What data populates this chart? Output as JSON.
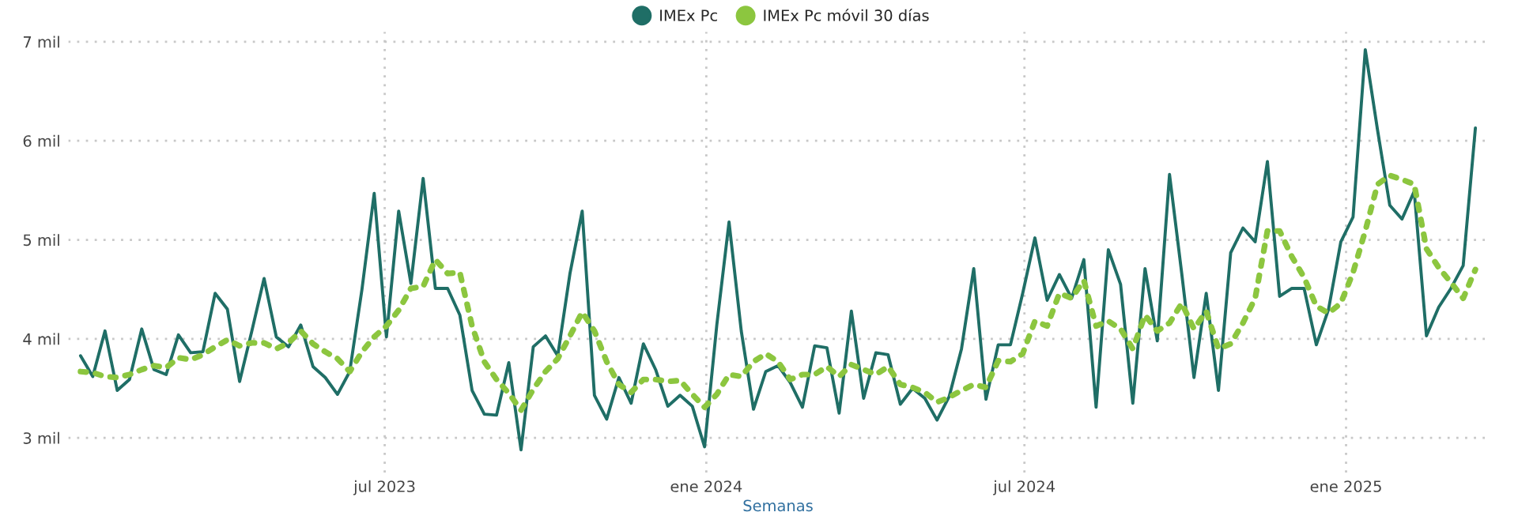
{
  "chart_data": {
    "type": "line",
    "xlabel": "Semanas",
    "x": [
      "2023-01-08",
      "2023-01-15",
      "2023-01-22",
      "2023-01-29",
      "2023-02-05",
      "2023-02-12",
      "2023-02-19",
      "2023-02-26",
      "2023-03-05",
      "2023-03-12",
      "2023-03-19",
      "2023-03-26",
      "2023-04-02",
      "2023-04-09",
      "2023-04-16",
      "2023-04-23",
      "2023-04-30",
      "2023-05-07",
      "2023-05-14",
      "2023-05-21",
      "2023-05-28",
      "2023-06-04",
      "2023-06-11",
      "2023-06-18",
      "2023-06-25",
      "2023-07-02",
      "2023-07-09",
      "2023-07-16",
      "2023-07-23",
      "2023-07-30",
      "2023-08-06",
      "2023-08-13",
      "2023-08-20",
      "2023-08-27",
      "2023-09-03",
      "2023-09-10",
      "2023-09-17",
      "2023-09-24",
      "2023-10-01",
      "2023-10-08",
      "2023-10-15",
      "2023-10-22",
      "2023-10-29",
      "2023-11-05",
      "2023-11-12",
      "2023-11-19",
      "2023-11-26",
      "2023-12-03",
      "2023-12-10",
      "2023-12-17",
      "2023-12-24",
      "2023-12-31",
      "2024-01-07",
      "2024-01-14",
      "2024-01-21",
      "2024-01-28",
      "2024-02-04",
      "2024-02-11",
      "2024-02-18",
      "2024-02-25",
      "2024-03-03",
      "2024-03-10",
      "2024-03-17",
      "2024-03-24",
      "2024-03-31",
      "2024-04-07",
      "2024-04-14",
      "2024-04-21",
      "2024-04-28",
      "2024-05-05",
      "2024-05-12",
      "2024-05-19",
      "2024-05-26",
      "2024-06-02",
      "2024-06-09",
      "2024-06-16",
      "2024-06-23",
      "2024-06-30",
      "2024-07-07",
      "2024-07-14",
      "2024-07-21",
      "2024-07-28",
      "2024-08-04",
      "2024-08-11",
      "2024-08-18",
      "2024-08-25",
      "2024-09-01",
      "2024-09-08",
      "2024-09-15",
      "2024-09-22",
      "2024-09-29",
      "2024-10-06",
      "2024-10-13",
      "2024-10-20",
      "2024-10-27",
      "2024-11-03",
      "2024-11-10",
      "2024-11-17",
      "2024-11-24",
      "2024-12-01",
      "2024-12-08",
      "2024-12-15",
      "2024-12-22",
      "2024-12-29",
      "2025-01-05",
      "2025-01-12",
      "2025-01-19",
      "2025-01-26",
      "2025-02-02",
      "2025-02-09",
      "2025-02-16",
      "2025-02-23",
      "2025-03-02",
      "2025-03-09",
      "2025-03-16"
    ],
    "series": [
      {
        "name": "IMEx Pc",
        "color": "#1f6e66",
        "line_style": "solid",
        "values": [
          3.83,
          3.62,
          4.08,
          3.48,
          3.59,
          4.1,
          3.69,
          3.64,
          4.04,
          3.86,
          3.87,
          4.46,
          4.3,
          3.57,
          4.08,
          4.61,
          4.02,
          3.92,
          4.14,
          3.72,
          3.61,
          3.44,
          3.67,
          4.5,
          5.47,
          4.02,
          5.29,
          4.56,
          5.62,
          4.51,
          4.51,
          4.24,
          3.48,
          3.24,
          3.23,
          3.76,
          2.88,
          3.92,
          4.03,
          3.83,
          4.66,
          5.29,
          3.43,
          3.19,
          3.61,
          3.35,
          3.95,
          3.69,
          3.32,
          3.43,
          3.32,
          2.91,
          4.14,
          5.18,
          4.08,
          3.29,
          3.67,
          3.73,
          3.56,
          3.31,
          3.93,
          3.91,
          3.25,
          4.28,
          3.4,
          3.86,
          3.84,
          3.34,
          3.5,
          3.4,
          3.18,
          3.42,
          3.9,
          4.71,
          3.39,
          3.94,
          3.94,
          4.46,
          5.02,
          4.39,
          4.65,
          4.41,
          4.8,
          3.31,
          4.9,
          4.55,
          3.35,
          4.71,
          3.98,
          5.66,
          4.66,
          3.61,
          4.46,
          3.48,
          4.87,
          5.12,
          4.98,
          5.79,
          4.43,
          4.51,
          4.51,
          3.94,
          4.3,
          4.98,
          5.23,
          6.92,
          6.11,
          5.35,
          5.21,
          5.49,
          4.03,
          4.32,
          4.51,
          4.74,
          6.13
        ]
      },
      {
        "name": "IMEx Pc móvil 30 días",
        "color": "#8cc63f",
        "line_style": "dotted",
        "values": [
          3.67,
          3.66,
          3.62,
          3.61,
          3.64,
          3.69,
          3.73,
          3.71,
          3.81,
          3.79,
          3.84,
          3.92,
          3.99,
          3.93,
          3.96,
          3.96,
          3.9,
          3.96,
          4.08,
          3.95,
          3.87,
          3.8,
          3.67,
          3.87,
          4.02,
          4.13,
          4.29,
          4.51,
          4.53,
          4.8,
          4.66,
          4.67,
          4.13,
          3.77,
          3.59,
          3.45,
          3.28,
          3.49,
          3.67,
          3.8,
          4.03,
          4.27,
          4.08,
          3.77,
          3.54,
          3.46,
          3.59,
          3.59,
          3.57,
          3.58,
          3.44,
          3.31,
          3.44,
          3.64,
          3.62,
          3.77,
          3.85,
          3.77,
          3.59,
          3.64,
          3.64,
          3.72,
          3.62,
          3.74,
          3.69,
          3.64,
          3.72,
          3.54,
          3.51,
          3.46,
          3.36,
          3.41,
          3.48,
          3.54,
          3.51,
          3.78,
          3.77,
          3.85,
          4.18,
          4.13,
          4.46,
          4.41,
          4.59,
          4.13,
          4.18,
          4.1,
          3.9,
          4.24,
          4.08,
          4.16,
          4.36,
          4.1,
          4.28,
          3.9,
          3.95,
          4.16,
          4.41,
          5.09,
          5.09,
          4.83,
          4.62,
          4.33,
          4.26,
          4.36,
          4.67,
          5.09,
          5.56,
          5.65,
          5.61,
          5.56,
          4.91,
          4.72,
          4.57,
          4.41,
          4.7
        ]
      }
    ],
    "xlim": [
      "2023-01-01",
      "2025-03-23"
    ],
    "xticks": [
      {
        "value": "2023-07-01",
        "label": "jul 2023"
      },
      {
        "value": "2024-01-01",
        "label": "ene 2024"
      },
      {
        "value": "2024-07-01",
        "label": "jul 2024"
      },
      {
        "value": "2025-01-01",
        "label": "ene 2025"
      }
    ],
    "ylim": [
      2.65,
      7.1
    ],
    "yticks": [
      {
        "value": 3,
        "label": "3 mil"
      },
      {
        "value": 4,
        "label": "4 mil"
      },
      {
        "value": 5,
        "label": "5 mil"
      },
      {
        "value": 6,
        "label": "6 mil"
      },
      {
        "value": 7,
        "label": "7 mil"
      }
    ],
    "grid": true,
    "legend": "top",
    "marker": "none"
  }
}
